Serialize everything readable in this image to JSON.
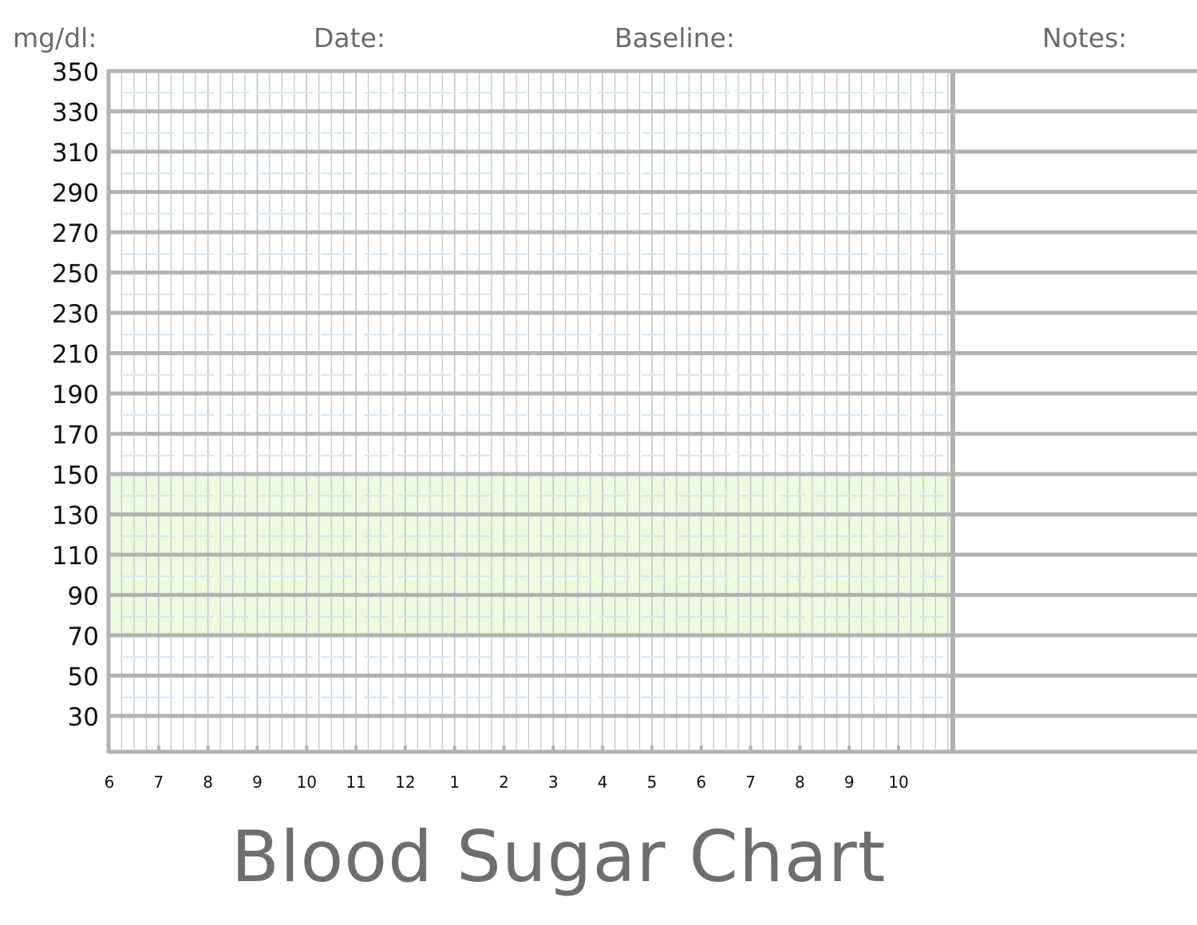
{
  "header": {
    "unit_label": "mg/dl:",
    "date_label": "Date:",
    "baseline_label": "Baseline:",
    "notes_label": "Notes:"
  },
  "title": "Blood Sugar Chart",
  "colors": {
    "grid_major": "#b3b3b3",
    "grid_minor": "#c4c4c4",
    "guide_dash": "#d6e6ee",
    "target_band": "#eef9e0",
    "tick_text": "#111111",
    "header_text": "#6a6a6a"
  },
  "chart_data": {
    "type": "table",
    "y_ticks": [
      350,
      330,
      310,
      290,
      270,
      250,
      230,
      210,
      190,
      170,
      150,
      130,
      110,
      90,
      70,
      50,
      30
    ],
    "x_tick_labels": [
      "6",
      "7",
      "8",
      "9",
      "10",
      "11",
      "12",
      "1",
      "2",
      "3",
      "4",
      "5",
      "6",
      "7",
      "8",
      "9",
      "10"
    ],
    "target_range": [
      70,
      150
    ],
    "grid": true
  }
}
